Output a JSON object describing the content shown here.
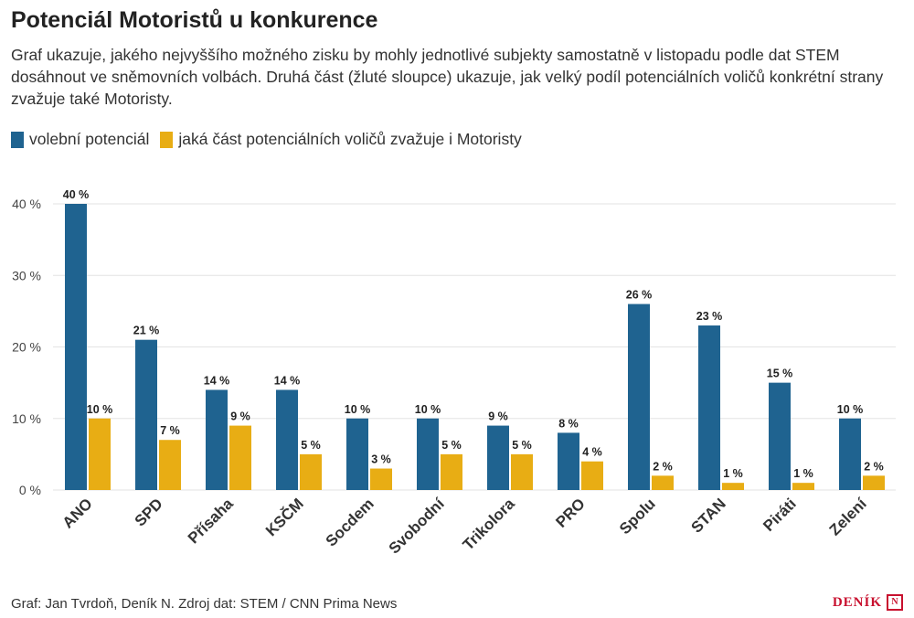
{
  "header": {
    "title": "Potenciál Motoristů u konkurence",
    "subtitle": "Graf ukazuje, jakého nejvyššího možného zisku by mohly jednotlivé subjekty samostatně v listopadu podle dat STEM dosáhnout ve sněmovních volbách. Druhá část (žluté sloupce) ukazuje, jak velký podíl potenciálních voličů konkrétní strany zvažuje také Motoristy."
  },
  "legend": {
    "items": [
      {
        "label": "volební potenciál",
        "color": "#1f6390"
      },
      {
        "label": "jaká část potenciálních voličů zvažuje i Motoristy",
        "color": "#e8ad14"
      }
    ]
  },
  "chart_data": {
    "type": "bar",
    "categories": [
      "ANO",
      "SPD",
      "Přísaha",
      "KSČM",
      "Socdem",
      "Svobodní",
      "Trikolora",
      "PRO",
      "Spolu",
      "STAN",
      "Piráti",
      "Zelení"
    ],
    "series": [
      {
        "name": "volební potenciál",
        "color": "#1f6390",
        "values": [
          40,
          21,
          14,
          14,
          10,
          10,
          9,
          8,
          26,
          23,
          15,
          10
        ]
      },
      {
        "name": "jaká část potenciálních voličů zvažuje i Motoristy",
        "color": "#e8ad14",
        "values": [
          10,
          7,
          9,
          5,
          3,
          5,
          5,
          4,
          2,
          1,
          1,
          2
        ]
      }
    ],
    "yticks": [
      "0 %",
      "10 %",
      "20 %",
      "30 %",
      "40 %"
    ],
    "ylim": [
      0,
      40
    ],
    "value_suffix": " %",
    "grid": true
  },
  "footer": {
    "credit": "Graf: Jan Tvrdoň, Deník N. Zdroj dat: STEM / CNN Prima News",
    "brand": "DENÍK",
    "brand_mark": "N"
  }
}
